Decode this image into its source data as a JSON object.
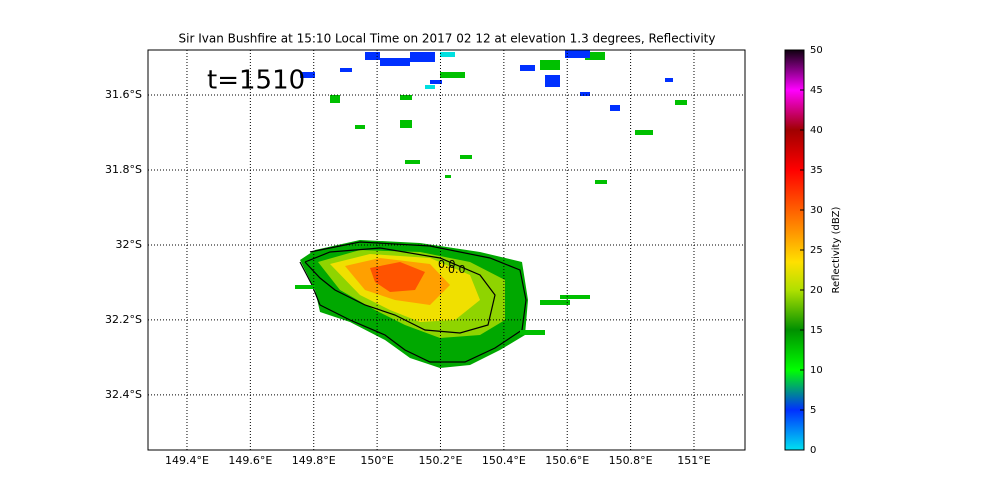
{
  "chart_data": {
    "type": "map",
    "title": "Sir Ivan Bushfire at 15:10 Local Time on 2017 02 12 at elevation 1.3 degrees, Reflectivity",
    "annotation": "t=1510",
    "contour_labels": [
      "0.0",
      "0.0"
    ],
    "xlim": [
      149.277,
      151.161
    ],
    "xticks": [
      {
        "value": 149.4,
        "label": "149.4°E"
      },
      {
        "value": 149.6,
        "label": "149.6°E"
      },
      {
        "value": 149.8,
        "label": "149.8°E"
      },
      {
        "value": 150,
        "label": "150°E"
      },
      {
        "value": 150.2,
        "label": "150.2°E"
      },
      {
        "value": 150.4,
        "label": "150.4°E"
      },
      {
        "value": 150.6,
        "label": "150.6°E"
      },
      {
        "value": 150.8,
        "label": "150.8°E"
      },
      {
        "value": 151,
        "label": "151°E"
      }
    ],
    "ylim": [
      -32.547,
      -31.48
    ],
    "yticks": [
      {
        "value": -31.6,
        "label": "31.6°S"
      },
      {
        "value": -31.8,
        "label": "31.8°S"
      },
      {
        "value": -32,
        "label": "32°S"
      },
      {
        "value": -32.2,
        "label": "32.2°S"
      },
      {
        "value": -32.4,
        "label": "32.4°S"
      }
    ],
    "grid": true,
    "colorbar": {
      "label": "Reflectivity (dBZ)",
      "lim": [
        0,
        50
      ],
      "ticks": [
        0,
        5,
        10,
        15,
        20,
        25,
        30,
        35,
        40,
        45,
        50
      ]
    }
  }
}
